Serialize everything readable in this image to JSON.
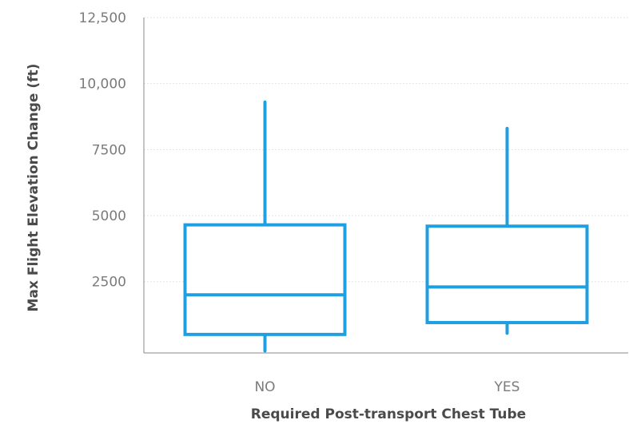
{
  "chart_data": {
    "type": "boxplot",
    "title": "",
    "xlabel": "Required Post-transport Chest Tube",
    "ylabel": "Max Flight Elevation Change (ft)",
    "categories": [
      "NO",
      "YES"
    ],
    "ylim": [
      -200,
      12500
    ],
    "yticks": [
      2500,
      5000,
      7500,
      10000,
      12500
    ],
    "ytick_labels": [
      "2500",
      "5000",
      "7500",
      "10,000",
      "12,500"
    ],
    "boxes": [
      {
        "category": "NO",
        "whisker_low": -120,
        "q1": 500,
        "median": 2000,
        "q3": 4650,
        "whisker_high": 9300
      },
      {
        "category": "YES",
        "whisker_low": 550,
        "q1": 950,
        "median": 2300,
        "q3": 4600,
        "whisker_high": 8300
      }
    ],
    "grid": true,
    "colors": {
      "box": "#1f9fe0",
      "grid": "#e3e3e3",
      "axis": "#888888",
      "tick_text": "#7b7b7b",
      "label_text": "#4a4a4a"
    }
  }
}
